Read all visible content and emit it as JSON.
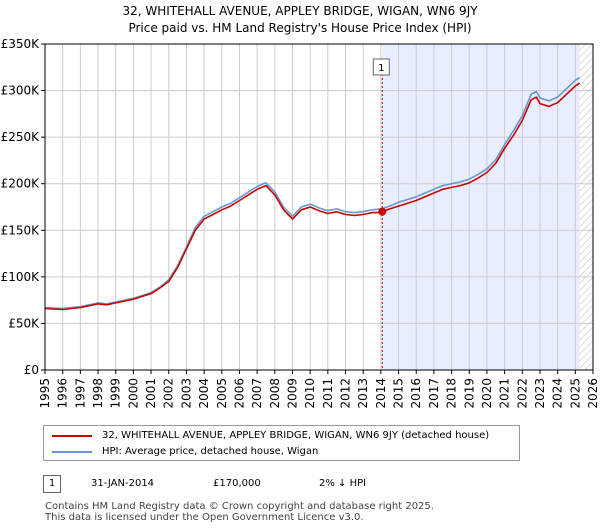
{
  "chart_data": {
    "type": "line",
    "title": "32, WHITEHALL AVENUE, APPLEY BRIDGE, WIGAN, WN6 9JY",
    "subtitle": "Price paid vs. HM Land Registry's House Price Index (HPI)",
    "xlabel": "",
    "ylabel": "",
    "xlim": [
      1995,
      2026
    ],
    "ylim": [
      0,
      350000
    ],
    "y_ticks": [
      {
        "value": 0,
        "label": "£0"
      },
      {
        "value": 50000,
        "label": "£50K"
      },
      {
        "value": 100000,
        "label": "£100K"
      },
      {
        "value": 150000,
        "label": "£150K"
      },
      {
        "value": 200000,
        "label": "£200K"
      },
      {
        "value": 250000,
        "label": "£250K"
      },
      {
        "value": 300000,
        "label": "£300K"
      },
      {
        "value": 350000,
        "label": "£350K"
      }
    ],
    "x_ticks": [
      "1995",
      "1996",
      "1997",
      "1998",
      "1999",
      "2000",
      "2001",
      "2002",
      "2003",
      "2004",
      "2005",
      "2006",
      "2007",
      "2008",
      "2009",
      "2010",
      "2011",
      "2012",
      "2013",
      "2014",
      "2015",
      "2016",
      "2017",
      "2018",
      "2019",
      "2020",
      "2021",
      "2022",
      "2023",
      "2024",
      "2025",
      "2026"
    ],
    "grid": true,
    "legend_position": "bottom",
    "shaded_region": {
      "from": 2014.08,
      "to": 2025.25,
      "color": "#e8eeff"
    },
    "hatched_region": {
      "from": 2025.25,
      "to": 2026
    },
    "series": [
      {
        "name": "32, WHITEHALL AVENUE, APPLEY BRIDGE, WIGAN, WN6 9JY (detached house)",
        "color": "#cc0000",
        "x": [
          1995,
          1995.5,
          1996,
          1996.5,
          1997,
          1997.5,
          1998,
          1998.5,
          1999,
          1999.5,
          2000,
          2000.5,
          2001,
          2001.5,
          2002,
          2002.5,
          2003,
          2003.5,
          2004,
          2004.5,
          2005,
          2005.5,
          2006,
          2006.5,
          2007,
          2007.5,
          2008,
          2008.5,
          2009,
          2009.5,
          2010,
          2010.5,
          2011,
          2011.5,
          2012,
          2012.5,
          2013,
          2013.5,
          2014,
          2014.08,
          2014.5,
          2015,
          2015.5,
          2016,
          2016.5,
          2017,
          2017.5,
          2018,
          2018.5,
          2019,
          2019.5,
          2020,
          2020.5,
          2021,
          2021.5,
          2022,
          2022.5,
          2022.8,
          2023,
          2023.5,
          2024,
          2024.5,
          2025,
          2025.25
        ],
        "values": [
          66000,
          65500,
          65000,
          66000,
          67000,
          69000,
          71000,
          70000,
          72000,
          74000,
          76000,
          79000,
          82000,
          88000,
          95000,
          110000,
          130000,
          150000,
          162000,
          167000,
          172000,
          176000,
          182000,
          188000,
          194000,
          198000,
          188000,
          172000,
          162000,
          172000,
          175000,
          171000,
          168000,
          170000,
          167000,
          166000,
          167000,
          169000,
          169000,
          170000,
          173000,
          176000,
          179000,
          182000,
          186000,
          190000,
          194000,
          196000,
          198000,
          201000,
          206000,
          212000,
          222000,
          238000,
          252000,
          268000,
          290000,
          293000,
          286000,
          283000,
          287000,
          296000,
          305000,
          308000
        ]
      },
      {
        "name": "HPI: Average price, detached house, Wigan",
        "color": "#6699cc",
        "x": [
          1995,
          1995.5,
          1996,
          1996.5,
          1997,
          1997.5,
          1998,
          1998.5,
          1999,
          1999.5,
          2000,
          2000.5,
          2001,
          2001.5,
          2002,
          2002.5,
          2003,
          2003.5,
          2004,
          2004.5,
          2005,
          2005.5,
          2006,
          2006.5,
          2007,
          2007.5,
          2008,
          2008.5,
          2009,
          2009.5,
          2010,
          2010.5,
          2011,
          2011.5,
          2012,
          2012.5,
          2013,
          2013.5,
          2014,
          2014.5,
          2015,
          2015.5,
          2016,
          2016.5,
          2017,
          2017.5,
          2018,
          2018.5,
          2019,
          2019.5,
          2020,
          2020.5,
          2021,
          2021.5,
          2022,
          2022.5,
          2022.8,
          2023,
          2023.5,
          2024,
          2024.5,
          2025,
          2025.25
        ],
        "values": [
          67000,
          66500,
          66000,
          67000,
          68000,
          70000,
          72000,
          71000,
          73000,
          75000,
          77000,
          80000,
          83000,
          89000,
          97000,
          112000,
          132000,
          153000,
          165000,
          170000,
          175000,
          179000,
          185000,
          191000,
          197000,
          201000,
          191000,
          175000,
          165000,
          175000,
          178000,
          174000,
          171000,
          173000,
          170000,
          169000,
          170000,
          172000,
          173000,
          176000,
          180000,
          183000,
          186000,
          190000,
          194000,
          198000,
          200000,
          202000,
          205000,
          210000,
          216000,
          226000,
          242000,
          257000,
          273000,
          296000,
          299000,
          292000,
          289000,
          293000,
          302000,
          311000,
          314000
        ]
      }
    ],
    "annotations": [
      {
        "label": "1",
        "x": 2014.08,
        "y": 170000
      }
    ]
  },
  "transactions": [
    {
      "badge": "1",
      "date": "31-JAN-2014",
      "price": "£170,000",
      "hpi": "2% ↓ HPI"
    }
  ],
  "footer": {
    "line1": "Contains HM Land Registry data © Crown copyright and database right 2025.",
    "line2": "This data is licensed under the Open Government Licence v3.0."
  }
}
